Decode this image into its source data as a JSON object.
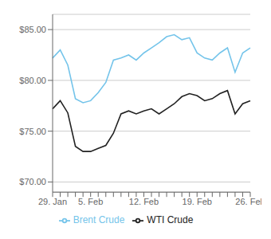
{
  "chart_data": {
    "type": "line",
    "categories": [
      "29. Jan",
      null,
      null,
      null,
      null,
      "5. Feb",
      null,
      null,
      null,
      null,
      null,
      null,
      "12. Feb",
      null,
      null,
      null,
      null,
      null,
      null,
      "19. Feb",
      null,
      null,
      null,
      null,
      null,
      null,
      "26. Feb"
    ],
    "series": [
      {
        "name": "Brent Crude",
        "color": "#74c4ea",
        "values": [
          82.2,
          83.0,
          81.5,
          78.2,
          77.8,
          78.0,
          78.8,
          79.8,
          82.0,
          82.2,
          82.5,
          82.0,
          82.7,
          83.2,
          83.7,
          84.3,
          84.5,
          84.0,
          84.2,
          82.7,
          82.2,
          82.0,
          82.7,
          83.2,
          80.8,
          82.7,
          83.2
        ]
      },
      {
        "name": "WTI Crude",
        "color": "#222222",
        "values": [
          77.2,
          78.0,
          76.8,
          73.5,
          73.0,
          73.0,
          73.3,
          73.6,
          74.8,
          76.7,
          77.0,
          76.7,
          77.0,
          77.2,
          76.7,
          77.2,
          77.7,
          78.4,
          78.7,
          78.5,
          78.0,
          78.2,
          78.7,
          79.0,
          76.7,
          77.7,
          78.0
        ]
      }
    ],
    "ylim": [
      69.0,
      86.5
    ],
    "yticks": [
      {
        "value": 70.0,
        "label": "$70.00"
      },
      {
        "value": 75.0,
        "label": "$75.00"
      },
      {
        "value": 80.0,
        "label": "$80.00"
      },
      {
        "value": 85.0,
        "label": "$85.00"
      }
    ],
    "grid": true,
    "legend": "bottom"
  }
}
